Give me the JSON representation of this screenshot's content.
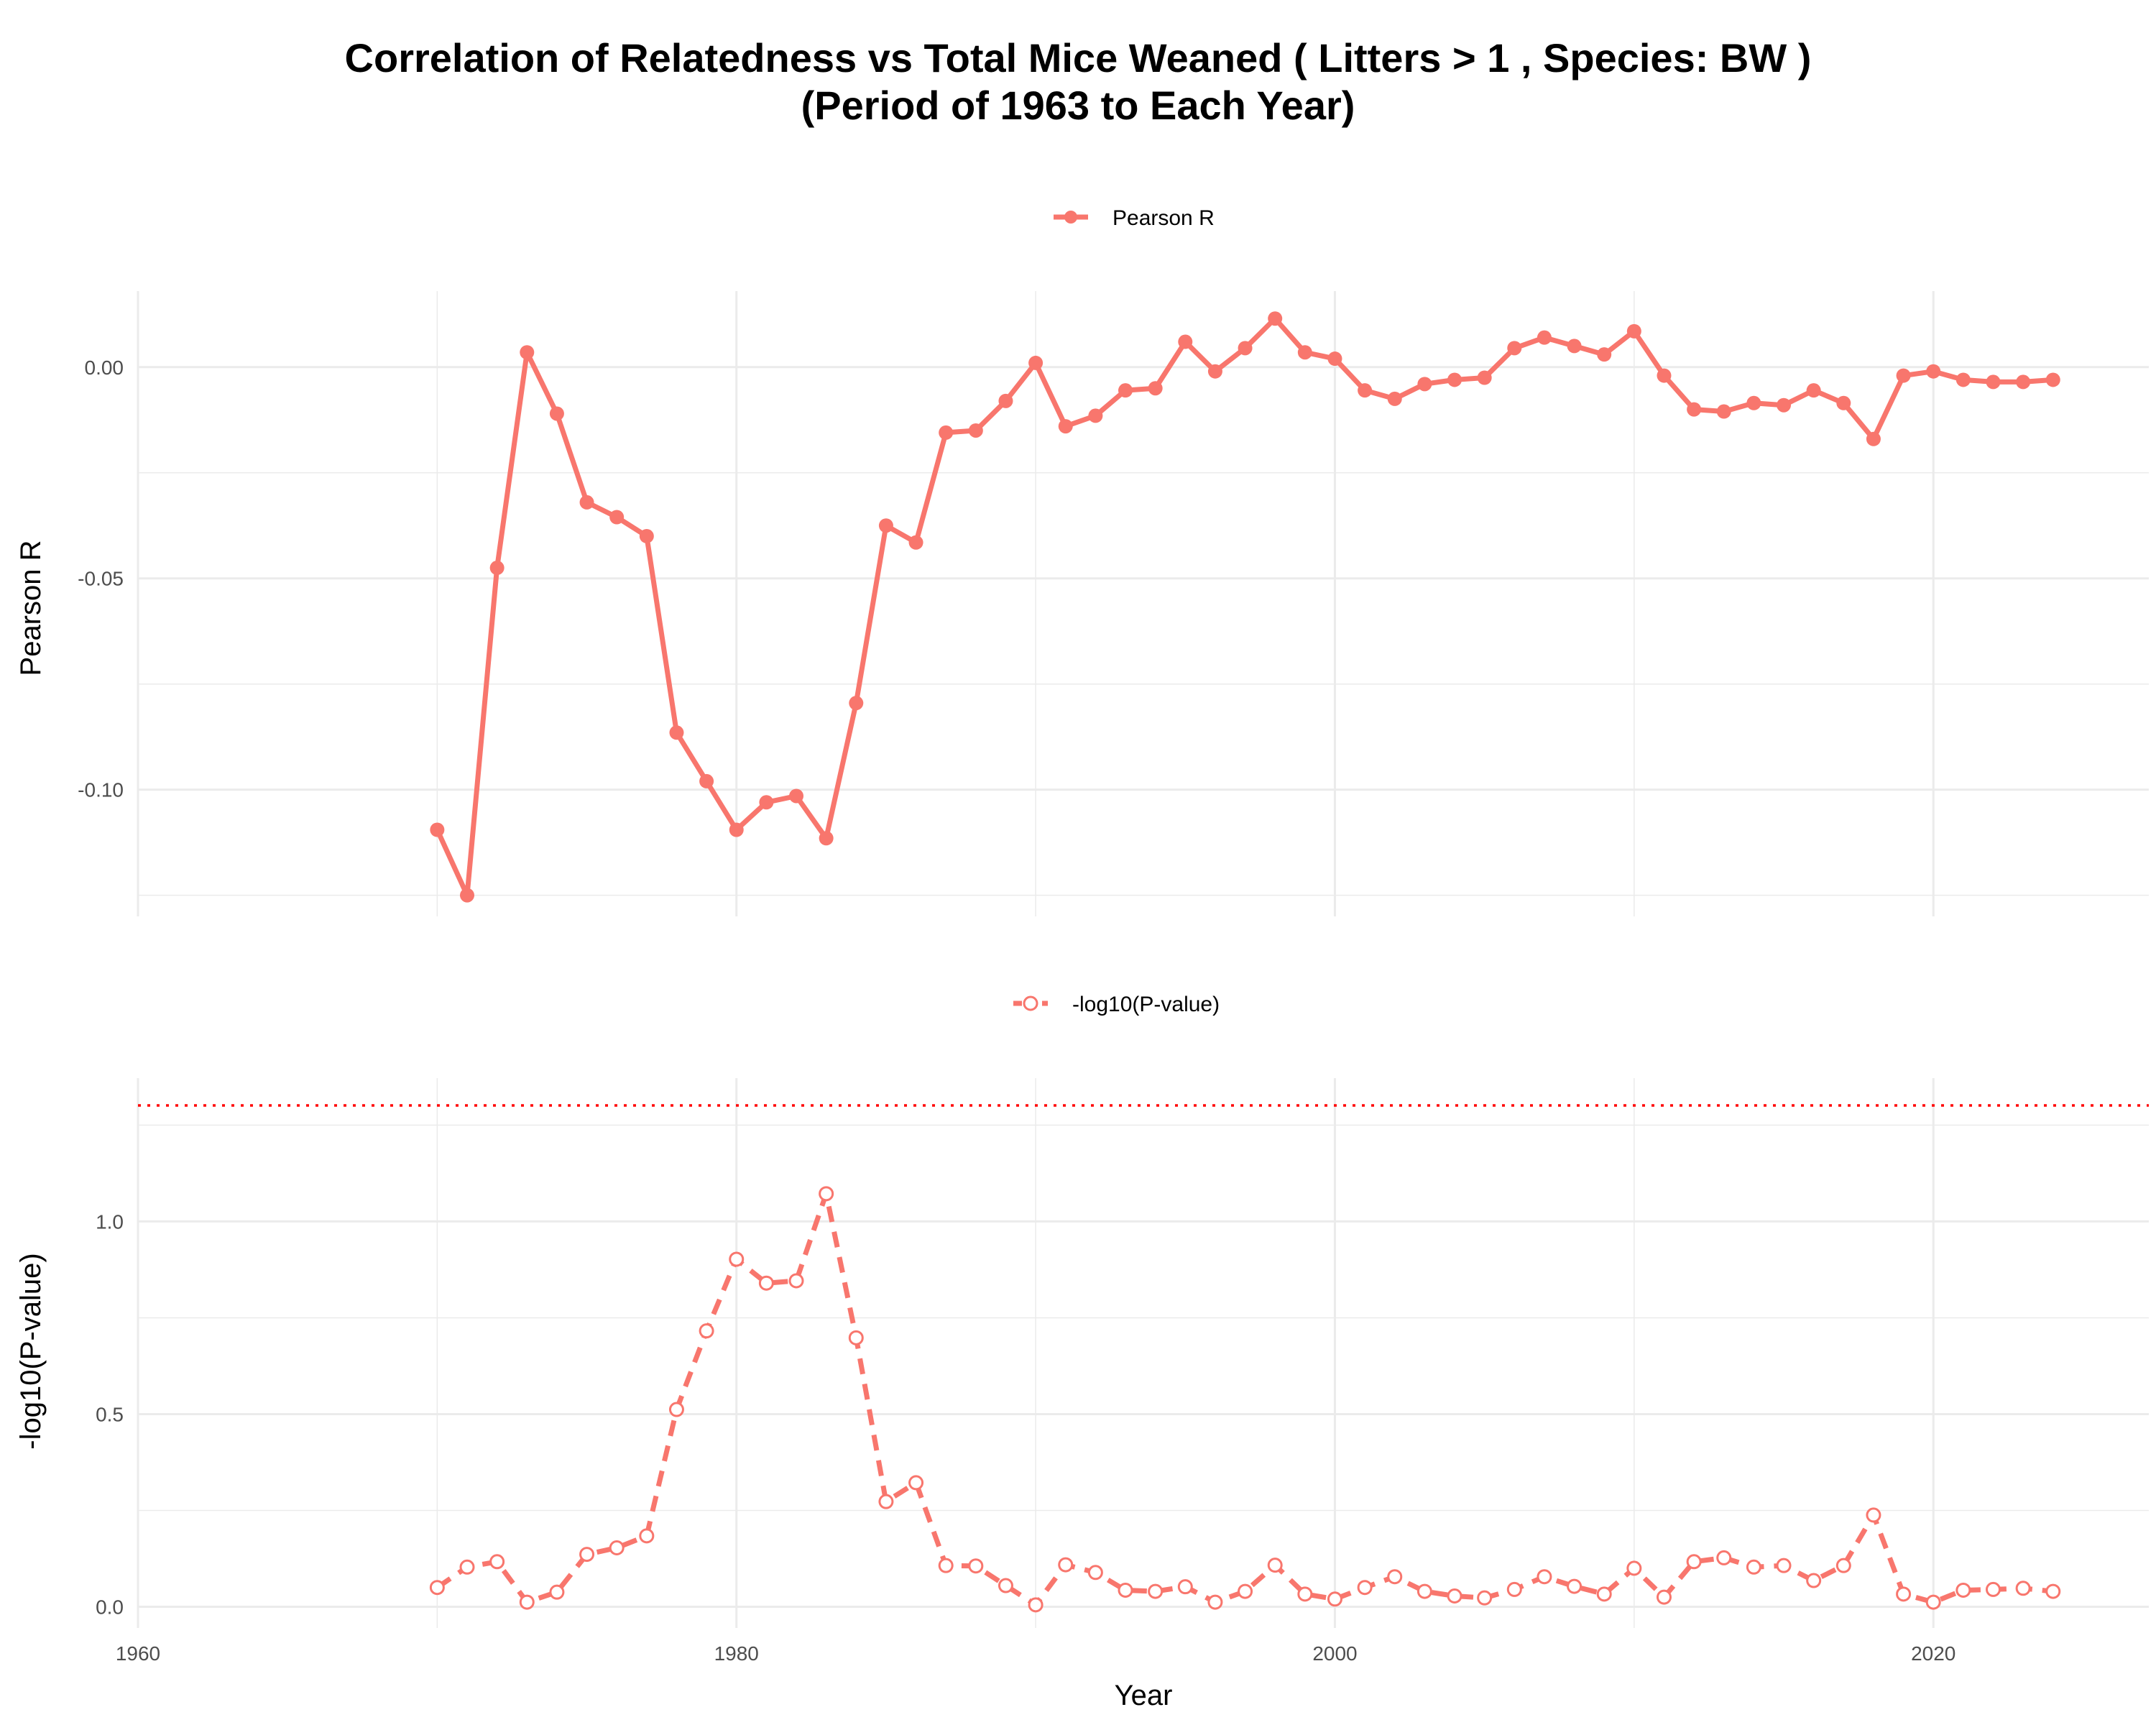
{
  "title_line1": "Correlation of Relatedness vs Total Mice Weaned ( Litters > 1 , Species: BW )",
  "title_line2": "(Period of 1963 to Each Year)",
  "colors": {
    "series": "#F8766D",
    "threshold": "#FF0000",
    "grid": "#EBEBEB"
  },
  "chart_data": [
    {
      "type": "line",
      "panel": "top",
      "legend": "Pearson R",
      "ylabel": "Pearson R",
      "xlim": [
        1960,
        2027.2
      ],
      "ylim": [
        -0.13,
        0.018
      ],
      "yticks": [
        -0.1,
        -0.05,
        0.0
      ],
      "ytick_labels": [
        "-0.10",
        "-0.05",
        "0.00"
      ],
      "x": [
        1970,
        1971,
        1972,
        1973,
        1974,
        1975,
        1976,
        1977,
        1978,
        1979,
        1980,
        1981,
        1982,
        1983,
        1984,
        1985,
        1986,
        1987,
        1988,
        1989,
        1990,
        1991,
        1992,
        1993,
        1994,
        1995,
        1996,
        1997,
        1998,
        1999,
        2000,
        2001,
        2002,
        2003,
        2004,
        2005,
        2006,
        2007,
        2008,
        2009,
        2010,
        2011,
        2012,
        2013,
        2014,
        2015,
        2016,
        2017,
        2018,
        2019,
        2020,
        2021,
        2022,
        2023,
        2024
      ],
      "values": [
        -0.1095,
        -0.125,
        -0.0475,
        0.0035,
        -0.011,
        -0.032,
        -0.0355,
        -0.04,
        -0.0865,
        -0.098,
        -0.1095,
        -0.103,
        -0.1015,
        -0.1115,
        -0.0795,
        -0.0375,
        -0.0415,
        -0.0155,
        -0.015,
        -0.008,
        0.001,
        -0.014,
        -0.0115,
        -0.0055,
        -0.005,
        0.006,
        -0.001,
        0.0045,
        0.0115,
        0.0035,
        0.002,
        -0.0055,
        -0.0075,
        -0.004,
        -0.003,
        -0.0025,
        0.0045,
        0.007,
        0.005,
        0.003,
        0.0085,
        -0.002,
        -0.01,
        -0.0105,
        -0.0085,
        -0.009,
        -0.0055,
        -0.0085,
        -0.017,
        -0.002,
        -0.001,
        -0.003,
        -0.0035,
        -0.0035,
        -0.003
      ]
    },
    {
      "type": "line",
      "panel": "bottom",
      "legend": "-log10(P-value)",
      "ylabel": "-log10(P-value)",
      "xlabel": "Year",
      "xlim": [
        1960,
        2027.2
      ],
      "ylim": [
        -0.055,
        1.372
      ],
      "yticks": [
        0.0,
        0.5,
        1.0
      ],
      "ytick_labels": [
        "0.0",
        "0.5",
        "1.0"
      ],
      "xticks": [
        1960,
        1980,
        2000,
        2020
      ],
      "xtick_labels": [
        "1960",
        "1980",
        "2000",
        "2020"
      ],
      "threshold": 1.301,
      "x": [
        1970,
        1971,
        1972,
        1973,
        1974,
        1975,
        1976,
        1977,
        1978,
        1979,
        1980,
        1981,
        1982,
        1983,
        1984,
        1985,
        1986,
        1987,
        1988,
        1989,
        1990,
        1991,
        1992,
        1993,
        1994,
        1995,
        1996,
        1997,
        1998,
        1999,
        2000,
        2001,
        2002,
        2003,
        2004,
        2005,
        2006,
        2007,
        2008,
        2009,
        2010,
        2011,
        2012,
        2013,
        2014,
        2015,
        2016,
        2017,
        2018,
        2019,
        2020,
        2021,
        2022,
        2023,
        2024
      ],
      "values": [
        0.05,
        0.103,
        0.117,
        0.012,
        0.038,
        0.136,
        0.153,
        0.184,
        0.512,
        0.716,
        0.902,
        0.84,
        0.846,
        1.072,
        0.698,
        0.273,
        0.322,
        0.107,
        0.106,
        0.055,
        0.005,
        0.109,
        0.089,
        0.043,
        0.04,
        0.052,
        0.012,
        0.04,
        0.108,
        0.033,
        0.02,
        0.05,
        0.078,
        0.04,
        0.028,
        0.023,
        0.045,
        0.078,
        0.053,
        0.033,
        0.1,
        0.025,
        0.117,
        0.127,
        0.103,
        0.107,
        0.068,
        0.107,
        0.238,
        0.033,
        0.012,
        0.043,
        0.045,
        0.048,
        0.04
      ]
    }
  ]
}
